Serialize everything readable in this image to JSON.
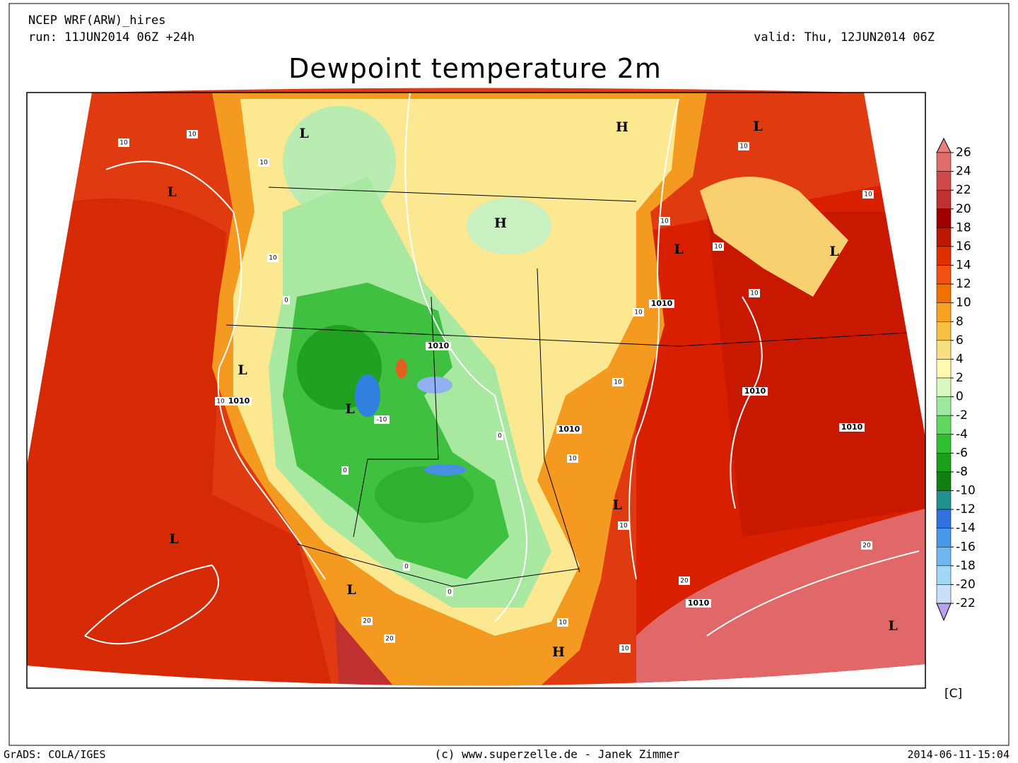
{
  "header": {
    "model": "NCEP WRF(ARW)_hires",
    "run": "run: 11JUN2014 06Z +24h",
    "valid": "valid: Thu, 12JUN2014 06Z",
    "title": "Dewpoint temperature 2m"
  },
  "map": {
    "labels": [
      "L",
      "H",
      "L",
      "L",
      "H",
      "L",
      "L",
      "1010",
      "1010",
      "L",
      "1010",
      "L",
      "1010",
      "1010",
      "1010",
      "L",
      "L",
      "L",
      "1010",
      "H",
      "L",
      "-10",
      "10",
      "10",
      "10",
      "10",
      "10",
      "10",
      "10",
      "10",
      "10",
      "10",
      "10",
      "10",
      "20",
      "20",
      "20",
      "20",
      "10",
      "10",
      "0",
      "0",
      "0",
      "0",
      "0",
      "10",
      "10"
    ]
  },
  "colorbar": {
    "ticks": [
      26,
      24,
      22,
      20,
      18,
      16,
      14,
      12,
      10,
      8,
      6,
      4,
      2,
      0,
      -2,
      -4,
      -6,
      -8,
      -10,
      -12,
      -14,
      -16,
      -18,
      -20,
      -22
    ],
    "colors": [
      "#e88080",
      "#e06c6c",
      "#d04848",
      "#c03030",
      "#a00000",
      "#c01800",
      "#e03000",
      "#f05010",
      "#f07000",
      "#f8a020",
      "#f8c040",
      "#f8e080",
      "#fff8b0",
      "#d8f8c0",
      "#a0e8a0",
      "#60d860",
      "#30c030",
      "#18a018",
      "#108010",
      "#209090",
      "#3070e0",
      "#4898e8",
      "#70b8f0",
      "#a0d8f8",
      "#c8e0f8",
      "#b8a0f0"
    ],
    "unit": "[C]"
  },
  "footer": {
    "left": "GrADS: COLA/IGES",
    "center": "(c) www.superzelle.de - Janek Zimmer",
    "right": "2014-06-11-15:04"
  }
}
